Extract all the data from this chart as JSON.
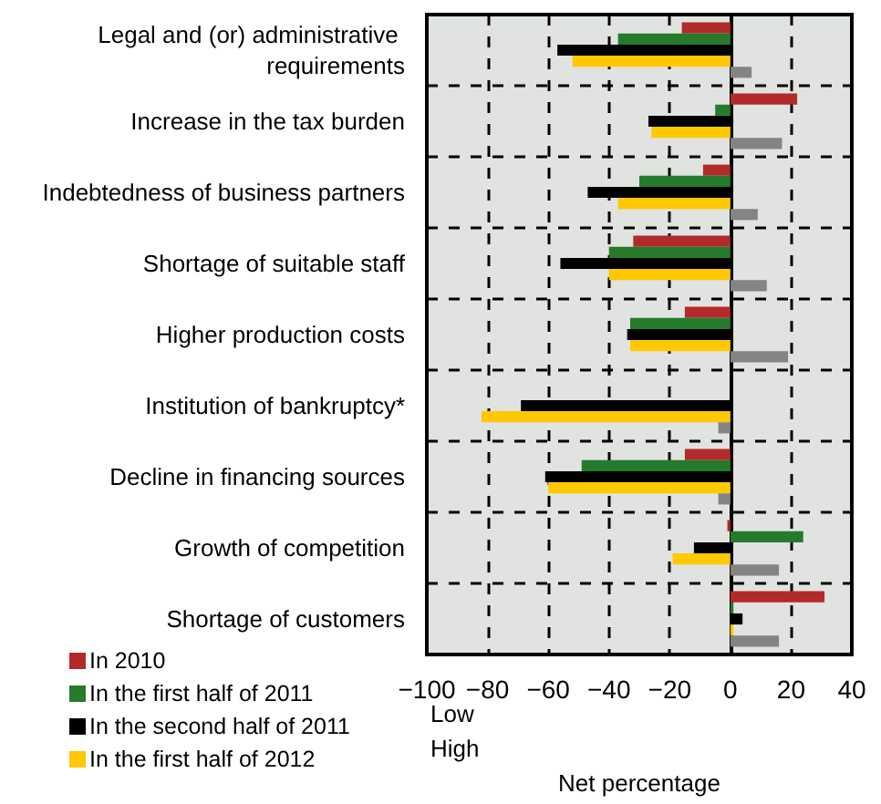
{
  "chart_data": {
    "type": "bar",
    "orientation": "horizontal",
    "xlabel": "Net percentage",
    "categories": [
      "Legal and (or) administrative requirements",
      "Increase in the tax burden",
      "Indebtedness of business partners",
      "Shortage of suitable staff",
      "Higher production costs",
      "Institution of bankruptcy*",
      "Decline in financing sources",
      "Growth of competition",
      "Shortage of customers"
    ],
    "series": [
      {
        "name": "In 2010",
        "color": "#b22a2a",
        "values": [
          -16,
          22,
          -9,
          -32,
          -15,
          null,
          -15,
          -1,
          31
        ]
      },
      {
        "name": "In the first half of 2011",
        "color": "#257a2c",
        "values": [
          -37,
          -5,
          -30,
          -40,
          -33,
          null,
          -49,
          24,
          1
        ]
      },
      {
        "name": "In the second half of 2011",
        "color": "#000000",
        "values": [
          -57,
          -27,
          -47,
          -56,
          -34,
          -69,
          -61,
          -12,
          4
        ]
      },
      {
        "name": "In the first half of 2012",
        "color": "#ffc800",
        "values": [
          -52,
          -26,
          -37,
          -40,
          -33,
          -82,
          -60,
          -19,
          1
        ]
      },
      {
        "color": "#848484",
        "values": [
          7,
          17,
          9,
          12,
          19,
          -4,
          -4,
          16,
          16
        ]
      }
    ],
    "xlim": [
      -100,
      40
    ],
    "xticks": [
      -100,
      -80,
      -60,
      -40,
      -20,
      0,
      20,
      40
    ],
    "grid": true,
    "legend": "bottom left",
    "annotations": [
      "Low",
      "High"
    ]
  }
}
